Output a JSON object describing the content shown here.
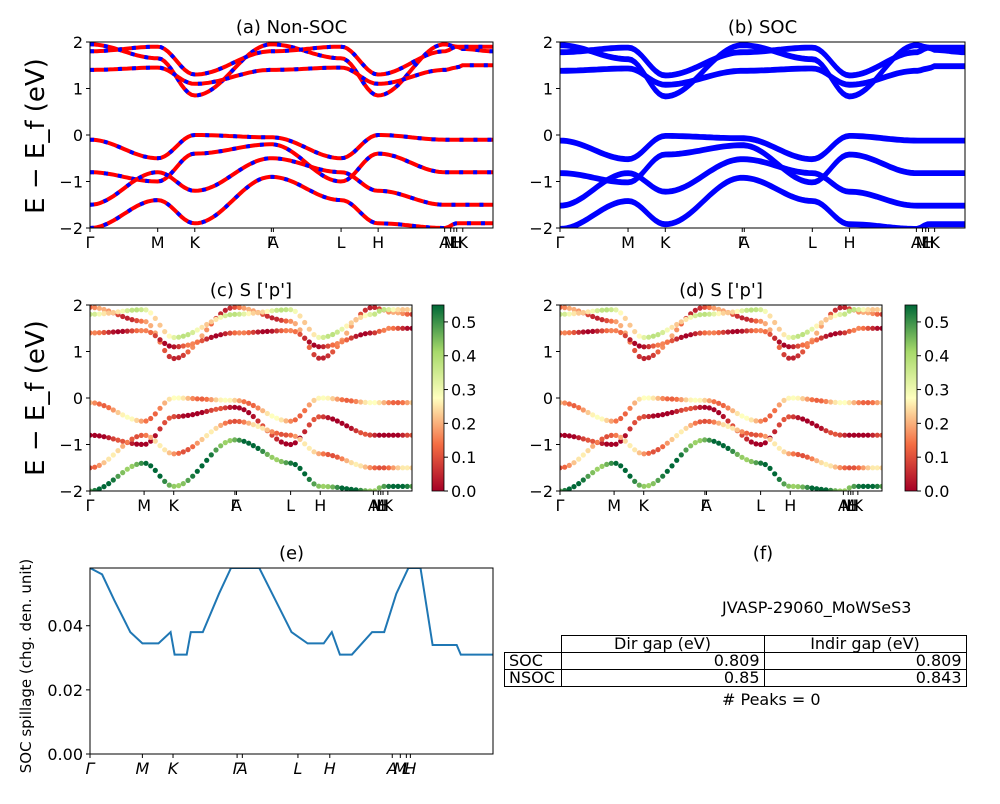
{
  "ylabel_top": "E − E_f (eV)",
  "ylabel_mid": "E − E_f (eV)",
  "chart_data": [
    {
      "id": "a",
      "type": "line",
      "title": "(a) Non-SOC",
      "xticks": [
        "Γ",
        "M",
        "K",
        "Γ",
        "A",
        "L",
        "H",
        "A",
        "M",
        "L",
        "H",
        "K"
      ],
      "xtick_pos": [
        0,
        0.168,
        0.26,
        0.45,
        0.455,
        0.623,
        0.715,
        0.88,
        0.895,
        0.903,
        0.91,
        0.925
      ],
      "ylim": [
        -2,
        2
      ],
      "yticks": [
        -2,
        -1,
        0,
        1,
        2
      ],
      "colors": [
        "#ff0000",
        "#0000ff"
      ],
      "bands": [
        {
          "name": "",
          "k": [
            0,
            0.168,
            0.26,
            0.45,
            0.623,
            0.715,
            0.88,
            0.91,
            0.925,
            1
          ],
          "E": [
            1.95,
            1.65,
            0.85,
            1.95,
            1.65,
            0.85,
            1.95,
            1.9,
            1.85,
            1.8
          ]
        },
        {
          "name": "",
          "k": [
            0,
            0.168,
            0.26,
            0.45,
            0.623,
            0.715,
            0.88,
            0.91,
            0.925,
            1
          ],
          "E": [
            1.4,
            1.45,
            1.1,
            1.4,
            1.45,
            1.1,
            1.4,
            1.45,
            1.5,
            1.5
          ]
        },
        {
          "name": "",
          "k": [
            0,
            0.168,
            0.26,
            0.45,
            0.623,
            0.715,
            0.88,
            0.91,
            0.925,
            1
          ],
          "E": [
            1.8,
            1.9,
            1.3,
            1.8,
            1.9,
            1.3,
            1.8,
            1.9,
            1.9,
            1.9
          ]
        },
        {
          "name": "",
          "k": [
            0,
            0.168,
            0.26,
            0.45,
            0.623,
            0.715,
            0.88,
            0.91,
            0.925,
            1
          ],
          "E": [
            -0.1,
            -0.5,
            0.0,
            -0.05,
            -0.5,
            0.0,
            -0.1,
            -0.1,
            -0.1,
            -0.1
          ]
        },
        {
          "name": "",
          "k": [
            0,
            0.168,
            0.26,
            0.45,
            0.623,
            0.715,
            0.88,
            0.91,
            0.925,
            1
          ],
          "E": [
            -0.8,
            -1.0,
            -0.4,
            -0.2,
            -1.0,
            -0.4,
            -0.8,
            -0.8,
            -0.8,
            -0.8
          ]
        },
        {
          "name": "",
          "k": [
            0,
            0.168,
            0.26,
            0.45,
            0.623,
            0.715,
            0.88,
            0.91,
            0.925,
            1
          ],
          "E": [
            -1.5,
            -0.8,
            -1.2,
            -0.5,
            -0.8,
            -1.2,
            -1.5,
            -1.5,
            -1.5,
            -1.5
          ]
        },
        {
          "name": "",
          "k": [
            0,
            0.168,
            0.26,
            0.45,
            0.623,
            0.715,
            0.88,
            0.91,
            0.925,
            1
          ],
          "E": [
            -2.0,
            -1.4,
            -1.9,
            -0.9,
            -1.4,
            -1.9,
            -2.0,
            -1.9,
            -1.9,
            -1.9
          ]
        }
      ]
    },
    {
      "id": "b",
      "type": "line",
      "title": "(b) SOC",
      "xticks": [
        "Γ",
        "M",
        "K",
        "Γ",
        "A",
        "L",
        "H",
        "A",
        "M",
        "L",
        "H",
        "K"
      ],
      "xtick_pos": [
        0,
        0.168,
        0.26,
        0.45,
        0.455,
        0.623,
        0.715,
        0.88,
        0.895,
        0.903,
        0.91,
        0.925
      ],
      "ylim": [
        -2,
        2
      ],
      "yticks": [
        -2,
        -1,
        0,
        1,
        2
      ],
      "colors": [
        "#0000ff"
      ],
      "bands": [
        {
          "name": "",
          "k": [
            0,
            0.168,
            0.26,
            0.45,
            0.623,
            0.715,
            0.88,
            0.91,
            0.925,
            1
          ],
          "E": [
            1.95,
            1.65,
            0.85,
            1.95,
            1.65,
            0.85,
            1.95,
            1.9,
            1.85,
            1.8
          ]
        },
        {
          "name": "",
          "k": [
            0,
            0.168,
            0.26,
            0.45,
            0.623,
            0.715,
            0.88,
            0.91,
            0.925,
            1
          ],
          "E": [
            1.4,
            1.45,
            1.1,
            1.4,
            1.45,
            1.1,
            1.4,
            1.45,
            1.5,
            1.5
          ]
        },
        {
          "name": "",
          "k": [
            0,
            0.168,
            0.26,
            0.45,
            0.623,
            0.715,
            0.88,
            0.91,
            0.925,
            1
          ],
          "E": [
            1.8,
            1.9,
            1.3,
            1.8,
            1.9,
            1.3,
            1.8,
            1.9,
            1.9,
            1.9
          ]
        },
        {
          "name": "",
          "k": [
            0,
            0.168,
            0.26,
            0.45,
            0.623,
            0.715,
            0.88,
            0.91,
            0.925,
            1
          ],
          "E": [
            -0.1,
            -0.5,
            0.0,
            -0.05,
            -0.5,
            0.0,
            -0.1,
            -0.1,
            -0.1,
            -0.1
          ]
        },
        {
          "name": "",
          "k": [
            0,
            0.168,
            0.26,
            0.45,
            0.623,
            0.715,
            0.88,
            0.91,
            0.925,
            1
          ],
          "E": [
            -0.8,
            -1.0,
            -0.4,
            -0.2,
            -1.0,
            -0.4,
            -0.8,
            -0.8,
            -0.8,
            -0.8
          ]
        },
        {
          "name": "",
          "k": [
            0,
            0.168,
            0.26,
            0.45,
            0.623,
            0.715,
            0.88,
            0.91,
            0.925,
            1
          ],
          "E": [
            -1.5,
            -0.8,
            -1.2,
            -0.5,
            -0.8,
            -1.2,
            -1.5,
            -1.5,
            -1.5,
            -1.5
          ]
        },
        {
          "name": "",
          "k": [
            0,
            0.168,
            0.26,
            0.45,
            0.623,
            0.715,
            0.88,
            0.91,
            0.925,
            1
          ],
          "E": [
            -2.0,
            -1.4,
            -1.9,
            -0.9,
            -1.4,
            -1.9,
            -2.0,
            -1.9,
            -1.9,
            -1.9
          ]
        }
      ]
    },
    {
      "id": "c",
      "type": "scatter",
      "title": "(c)  S ['p']",
      "xticks": [
        "Γ",
        "M",
        "K",
        "Γ",
        "A",
        "L",
        "H",
        "A",
        "M",
        "L",
        "H",
        "K"
      ],
      "xtick_pos": [
        0,
        0.168,
        0.26,
        0.45,
        0.455,
        0.623,
        0.715,
        0.88,
        0.895,
        0.903,
        0.91,
        0.925
      ],
      "ylim": [
        -2,
        2
      ],
      "yticks": [
        -2,
        -1,
        0,
        1,
        2
      ],
      "colorbar": {
        "min": 0.0,
        "max": 0.55,
        "ticks": [
          "0.0",
          "0.1",
          "0.2",
          "0.3",
          "0.4",
          "0.5"
        ]
      },
      "bands": [
        {
          "k": [
            0,
            0.168,
            0.26,
            0.45,
            0.623,
            0.715,
            0.88,
            0.91,
            0.925,
            1
          ],
          "E": [
            1.95,
            1.65,
            0.85,
            1.95,
            1.65,
            0.85,
            1.95,
            1.9,
            1.85,
            1.8
          ],
          "w": 0.12
        },
        {
          "k": [
            0,
            0.168,
            0.26,
            0.45,
            0.623,
            0.715,
            0.88,
            0.91,
            0.925,
            1
          ],
          "E": [
            1.4,
            1.45,
            1.1,
            1.4,
            1.45,
            1.1,
            1.4,
            1.45,
            1.5,
            1.5
          ],
          "w": 0.08
        },
        {
          "k": [
            0,
            0.168,
            0.26,
            0.45,
            0.623,
            0.715,
            0.88,
            0.91,
            0.925,
            1
          ],
          "E": [
            1.8,
            1.9,
            1.3,
            1.8,
            1.9,
            1.3,
            1.8,
            1.9,
            1.9,
            1.9
          ],
          "w": 0.3
        },
        {
          "k": [
            0,
            0.168,
            0.26,
            0.45,
            0.623,
            0.715,
            0.88,
            0.91,
            0.925,
            1
          ],
          "E": [
            -0.1,
            -0.5,
            0.0,
            -0.05,
            -0.5,
            0.0,
            -0.1,
            -0.1,
            -0.1,
            -0.1
          ],
          "w": 0.2
        },
        {
          "k": [
            0,
            0.168,
            0.26,
            0.45,
            0.623,
            0.715,
            0.88,
            0.91,
            0.925,
            1
          ],
          "E": [
            -0.8,
            -1.0,
            -0.4,
            -0.2,
            -1.0,
            -0.4,
            -0.8,
            -0.8,
            -0.8,
            -0.8
          ],
          "w": 0.03
        },
        {
          "k": [
            0,
            0.168,
            0.26,
            0.45,
            0.623,
            0.715,
            0.88,
            0.91,
            0.925,
            1
          ],
          "E": [
            -1.5,
            -0.8,
            -1.2,
            -0.5,
            -0.8,
            -1.2,
            -1.5,
            -1.5,
            -1.5,
            -1.5
          ],
          "w": 0.18
        },
        {
          "k": [
            0,
            0.168,
            0.26,
            0.45,
            0.623,
            0.715,
            0.88,
            0.91,
            0.925,
            1
          ],
          "E": [
            -2.0,
            -1.4,
            -1.9,
            -0.9,
            -1.4,
            -1.9,
            -2.0,
            -1.9,
            -1.9,
            -1.9
          ],
          "w": 0.5
        }
      ]
    },
    {
      "id": "d",
      "type": "scatter",
      "title": "(d) S ['p']",
      "xticks": [
        "Γ",
        "M",
        "K",
        "Γ",
        "A",
        "L",
        "H",
        "A",
        "M",
        "L",
        "H",
        "K"
      ],
      "xtick_pos": [
        0,
        0.168,
        0.26,
        0.45,
        0.455,
        0.623,
        0.715,
        0.88,
        0.895,
        0.903,
        0.91,
        0.925
      ],
      "ylim": [
        -2,
        2
      ],
      "yticks": [
        -2,
        -1,
        0,
        1,
        2
      ],
      "colorbar": {
        "min": 0.0,
        "max": 0.55,
        "ticks": [
          "0.0",
          "0.1",
          "0.2",
          "0.3",
          "0.4",
          "0.5"
        ]
      },
      "bands": [
        {
          "k": [
            0,
            0.168,
            0.26,
            0.45,
            0.623,
            0.715,
            0.88,
            0.91,
            0.925,
            1
          ],
          "E": [
            1.95,
            1.65,
            0.85,
            1.95,
            1.65,
            0.85,
            1.95,
            1.9,
            1.85,
            1.8
          ],
          "w": 0.12
        },
        {
          "k": [
            0,
            0.168,
            0.26,
            0.45,
            0.623,
            0.715,
            0.88,
            0.91,
            0.925,
            1
          ],
          "E": [
            1.4,
            1.45,
            1.1,
            1.4,
            1.45,
            1.1,
            1.4,
            1.45,
            1.5,
            1.5
          ],
          "w": 0.08
        },
        {
          "k": [
            0,
            0.168,
            0.26,
            0.45,
            0.623,
            0.715,
            0.88,
            0.91,
            0.925,
            1
          ],
          "E": [
            1.8,
            1.9,
            1.3,
            1.8,
            1.9,
            1.3,
            1.8,
            1.9,
            1.9,
            1.9
          ],
          "w": 0.3
        },
        {
          "k": [
            0,
            0.168,
            0.26,
            0.45,
            0.623,
            0.715,
            0.88,
            0.91,
            0.925,
            1
          ],
          "E": [
            -0.1,
            -0.5,
            0.0,
            -0.05,
            -0.5,
            0.0,
            -0.1,
            -0.1,
            -0.1,
            -0.1
          ],
          "w": 0.2
        },
        {
          "k": [
            0,
            0.168,
            0.26,
            0.45,
            0.623,
            0.715,
            0.88,
            0.91,
            0.925,
            1
          ],
          "E": [
            -0.8,
            -1.0,
            -0.4,
            -0.2,
            -1.0,
            -0.4,
            -0.8,
            -0.8,
            -0.8,
            -0.8
          ],
          "w": 0.03
        },
        {
          "k": [
            0,
            0.168,
            0.26,
            0.45,
            0.623,
            0.715,
            0.88,
            0.91,
            0.925,
            1
          ],
          "E": [
            -1.5,
            -0.8,
            -1.2,
            -0.5,
            -0.8,
            -1.2,
            -1.5,
            -1.5,
            -1.5,
            -1.5
          ],
          "w": 0.18
        },
        {
          "k": [
            0,
            0.168,
            0.26,
            0.45,
            0.623,
            0.715,
            0.88,
            0.91,
            0.925,
            1
          ],
          "E": [
            -2.0,
            -1.4,
            -1.9,
            -0.9,
            -1.4,
            -1.9,
            -2.0,
            -1.9,
            -1.9,
            -1.9
          ],
          "w": 0.5
        }
      ]
    },
    {
      "id": "e",
      "type": "line",
      "title": "(e)",
      "ylabel": "SOC spillage (chg. den. unit)",
      "xticks": [
        "Γ",
        "M",
        "K",
        "Γ",
        "A",
        "L",
        "H",
        "A",
        "M",
        "L",
        "H"
      ],
      "xtick_pos": [
        0,
        0.13,
        0.206,
        0.365,
        0.378,
        0.516,
        0.595,
        0.75,
        0.77,
        0.785,
        0.795
      ],
      "ylim": [
        0.0,
        0.058
      ],
      "yticks": [
        "0.00",
        "0.02",
        "0.04"
      ],
      "ytick_vals": [
        0.0,
        0.02,
        0.04
      ],
      "color": "#1f77b4",
      "x": [
        0,
        0.03,
        0.06,
        0.1,
        0.13,
        0.17,
        0.2,
        0.21,
        0.24,
        0.25,
        0.28,
        0.32,
        0.35,
        0.38,
        0.42,
        0.46,
        0.5,
        0.54,
        0.58,
        0.6,
        0.62,
        0.65,
        0.7,
        0.73,
        0.76,
        0.79,
        0.82,
        0.85,
        0.88,
        0.91,
        0.92,
        0.96,
        0.97,
        1.0
      ],
      "y": [
        0.058,
        0.056,
        0.048,
        0.038,
        0.0345,
        0.0345,
        0.038,
        0.031,
        0.031,
        0.038,
        0.038,
        0.05,
        0.058,
        0.058,
        0.058,
        0.048,
        0.038,
        0.0345,
        0.0345,
        0.038,
        0.031,
        0.031,
        0.038,
        0.038,
        0.05,
        0.058,
        0.058,
        0.034,
        0.034,
        0.034,
        0.031,
        0.031,
        0.031,
        0.031
      ]
    }
  ],
  "panel_f": {
    "title": "(f)",
    "material": "JVASP-29060_MoWSeS3",
    "columns": [
      "Dir gap (eV)",
      "Indir gap (eV)"
    ],
    "rows": [
      {
        "label": "SOC",
        "dir": "0.809",
        "indir": "0.809"
      },
      {
        "label": "NSOC",
        "dir": "0.85",
        "indir": "0.843"
      }
    ],
    "peaks": "# Peaks = 0"
  }
}
